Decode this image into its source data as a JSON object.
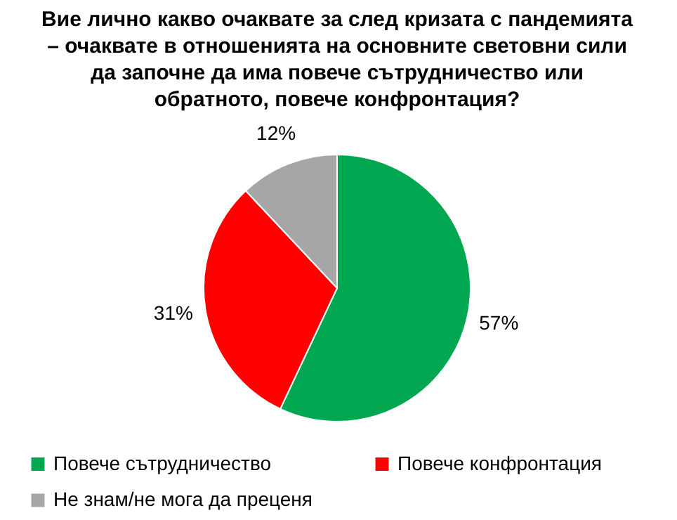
{
  "chart_data": {
    "type": "pie",
    "title": "Вие лично какво очаквате за след кризата с пандемията – очаквате в отношенията на основните световни сили да започне да има повече сътрудничество или обратното, повече конфронтация?",
    "categories": [
      "Повече сътрудничество",
      "Повече конфронтация",
      "Не знам/не мога да преценя"
    ],
    "values": [
      57,
      31,
      12
    ],
    "colors": [
      "#00a650",
      "#ff0000",
      "#a6a6a6"
    ],
    "value_labels": [
      "57%",
      "31%",
      "12%"
    ],
    "legend": "bottom"
  }
}
